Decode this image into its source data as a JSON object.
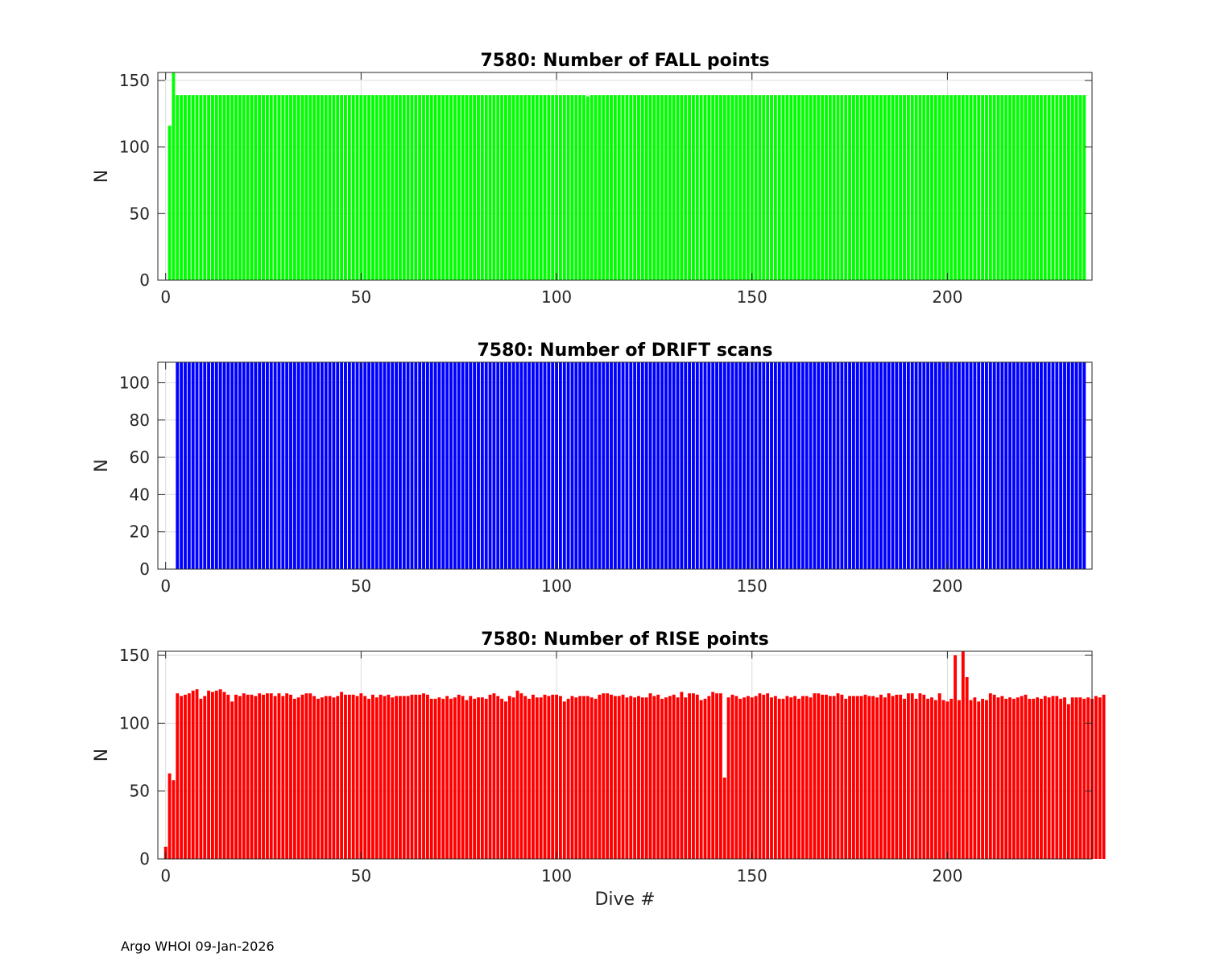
{
  "footer": "Argo WHOI 09-Jan-2026",
  "chart_data": [
    {
      "type": "bar",
      "title": "7580: Number of FALL points",
      "xlabel": "",
      "ylabel": "N",
      "xlim": [
        -2,
        237
      ],
      "ylim": [
        0,
        156
      ],
      "xticks": [
        0,
        50,
        100,
        150,
        200
      ],
      "yticks": [
        0,
        50,
        100,
        150
      ],
      "grid": true,
      "color": "#00ff00",
      "x_start": 1,
      "values": [
        116,
        156,
        139,
        139,
        139,
        139,
        139,
        139,
        139,
        139,
        139,
        139,
        139,
        139,
        139,
        139,
        139,
        139,
        139,
        139,
        139,
        139,
        139,
        139,
        139,
        139,
        139,
        139,
        139,
        139,
        139,
        139,
        139,
        139,
        139,
        139,
        139,
        139,
        139,
        139,
        139,
        139,
        139,
        139,
        139,
        139,
        139,
        139,
        139,
        139,
        139,
        139,
        139,
        139,
        139,
        139,
        139,
        139,
        139,
        139,
        139,
        139,
        139,
        139,
        139,
        139,
        139,
        139,
        139,
        139,
        139,
        139,
        139,
        139,
        139,
        139,
        139,
        139,
        139,
        139,
        139,
        139,
        139,
        139,
        139,
        139,
        139,
        139,
        139,
        139,
        139,
        139,
        139,
        139,
        139,
        139,
        139,
        139,
        139,
        139,
        139,
        139,
        139,
        139,
        139,
        139,
        139,
        138,
        139,
        139,
        139,
        139,
        139,
        139,
        139,
        139,
        139,
        139,
        139,
        139,
        139,
        139,
        139,
        139,
        139,
        139,
        139,
        139,
        139,
        139,
        139,
        139,
        139,
        139,
        139,
        139,
        139,
        139,
        139,
        139,
        139,
        139,
        139,
        139,
        139,
        139,
        139,
        139,
        139,
        139,
        139,
        139,
        139,
        139,
        139,
        139,
        139,
        139,
        139,
        139,
        139,
        139,
        139,
        139,
        139,
        139,
        139,
        139,
        139,
        139,
        139,
        139,
        139,
        139,
        139,
        139,
        139,
        139,
        139,
        139,
        139,
        139,
        139,
        139,
        139,
        139,
        139,
        139,
        139,
        139,
        139,
        139,
        139,
        139,
        139,
        139,
        139,
        139,
        139,
        139,
        139,
        139,
        139,
        139,
        139,
        139,
        139,
        139,
        139,
        139,
        139,
        139,
        139,
        139,
        139,
        139,
        139,
        139,
        139,
        139,
        139,
        139,
        139,
        139,
        139,
        139,
        139,
        139,
        139,
        139,
        139,
        139,
        139,
        139,
        139
      ]
    },
    {
      "type": "bar",
      "title": "7580: Number of DRIFT scans",
      "xlabel": "",
      "ylabel": "N",
      "xlim": [
        -2,
        237
      ],
      "ylim": [
        0,
        111
      ],
      "xticks": [
        0,
        50,
        100,
        150,
        200
      ],
      "yticks": [
        0,
        20,
        40,
        60,
        80,
        100
      ],
      "grid": true,
      "color": "#0000ff",
      "x_start": 3,
      "values": [
        111,
        111,
        111,
        111,
        111,
        111,
        111,
        111,
        111,
        111,
        111,
        111,
        111,
        111,
        111,
        111,
        111,
        111,
        111,
        111,
        111,
        111,
        111,
        111,
        111,
        111,
        111,
        111,
        111,
        111,
        111,
        111,
        111,
        111,
        111,
        111,
        111,
        111,
        111,
        111,
        111,
        111,
        111,
        111,
        111,
        111,
        111,
        111,
        111,
        111,
        111,
        111,
        111,
        111,
        111,
        111,
        111,
        111,
        111,
        111,
        111,
        111,
        111,
        111,
        111,
        111,
        111,
        111,
        111,
        111,
        111,
        111,
        111,
        111,
        111,
        111,
        111,
        111,
        111,
        111,
        111,
        111,
        111,
        111,
        111,
        111,
        111,
        111,
        111,
        111,
        111,
        111,
        111,
        111,
        111,
        111,
        111,
        111,
        111,
        111,
        111,
        111,
        111,
        111,
        111,
        111,
        111,
        111,
        111,
        111,
        111,
        111,
        111,
        111,
        111,
        111,
        111,
        111,
        111,
        111,
        111,
        111,
        111,
        111,
        111,
        111,
        111,
        111,
        111,
        111,
        111,
        111,
        111,
        111,
        111,
        111,
        111,
        111,
        111,
        111,
        111,
        111,
        111,
        111,
        111,
        111,
        111,
        111,
        111,
        111,
        111,
        111,
        111,
        111,
        111,
        111,
        111,
        111,
        111,
        111,
        111,
        111,
        111,
        111,
        111,
        111,
        111,
        111,
        111,
        111,
        111,
        111,
        111,
        111,
        111,
        111,
        111,
        111,
        111,
        111,
        111,
        111,
        111,
        111,
        111,
        111,
        111,
        111,
        111,
        111,
        111,
        111,
        111,
        111,
        111,
        111,
        111,
        111,
        111,
        111,
        111,
        111,
        111,
        111,
        111,
        111,
        111,
        111,
        111,
        111,
        111,
        111,
        111,
        111,
        111,
        111,
        111,
        111,
        111,
        111,
        111,
        111,
        111,
        111,
        111,
        111,
        111,
        111,
        111,
        111,
        111,
        111,
        111
      ]
    },
    {
      "type": "bar",
      "title": "7580: Number of RISE points",
      "xlabel": "Dive #",
      "ylabel": "N",
      "xlim": [
        -2,
        237
      ],
      "ylim": [
        0,
        153
      ],
      "xticks": [
        0,
        50,
        100,
        150,
        200
      ],
      "yticks": [
        0,
        50,
        100,
        150
      ],
      "grid": true,
      "color": "#ff0000",
      "x_start": 0,
      "values": [
        9,
        63,
        58,
        122,
        120,
        121,
        122,
        124,
        125,
        118,
        120,
        124,
        123,
        124,
        125,
        123,
        121,
        116,
        121,
        120,
        122,
        121,
        121,
        120,
        122,
        121,
        122,
        122,
        120,
        122,
        120,
        122,
        121,
        118,
        119,
        121,
        122,
        122,
        120,
        118,
        119,
        120,
        120,
        119,
        120,
        123,
        121,
        121,
        121,
        120,
        122,
        120,
        118,
        121,
        119,
        121,
        120,
        121,
        119,
        120,
        120,
        120,
        120,
        121,
        121,
        121,
        122,
        121,
        118,
        118,
        119,
        118,
        120,
        118,
        119,
        121,
        120,
        117,
        120,
        118,
        119,
        119,
        118,
        121,
        122,
        120,
        118,
        116,
        120,
        119,
        124,
        122,
        120,
        118,
        121,
        119,
        119,
        121,
        120,
        121,
        121,
        120,
        116,
        118,
        120,
        119,
        120,
        120,
        120,
        119,
        118,
        121,
        122,
        122,
        121,
        120,
        120,
        121,
        119,
        120,
        119,
        120,
        119,
        119,
        122,
        120,
        121,
        118,
        119,
        120,
        121,
        119,
        123,
        119,
        122,
        122,
        121,
        117,
        118,
        120,
        123,
        122,
        122,
        60,
        119,
        121,
        120,
        118,
        119,
        120,
        119,
        120,
        122,
        121,
        122,
        119,
        120,
        118,
        118,
        120,
        119,
        120,
        118,
        120,
        120,
        119,
        122,
        122,
        121,
        121,
        120,
        120,
        122,
        121,
        118,
        120,
        120,
        120,
        120,
        121,
        120,
        120,
        119,
        121,
        119,
        122,
        120,
        121,
        121,
        118,
        122,
        122,
        118,
        122,
        121,
        118,
        119,
        117,
        122,
        117,
        116,
        118,
        150,
        117,
        153,
        134,
        117,
        119,
        116,
        118,
        117,
        122,
        121,
        119,
        120,
        118,
        119,
        118,
        119,
        120,
        121,
        118,
        118,
        119,
        118,
        120,
        119,
        120,
        120,
        118,
        119,
        114,
        119,
        119,
        119,
        118,
        119,
        118,
        120,
        119,
        121
      ]
    }
  ]
}
